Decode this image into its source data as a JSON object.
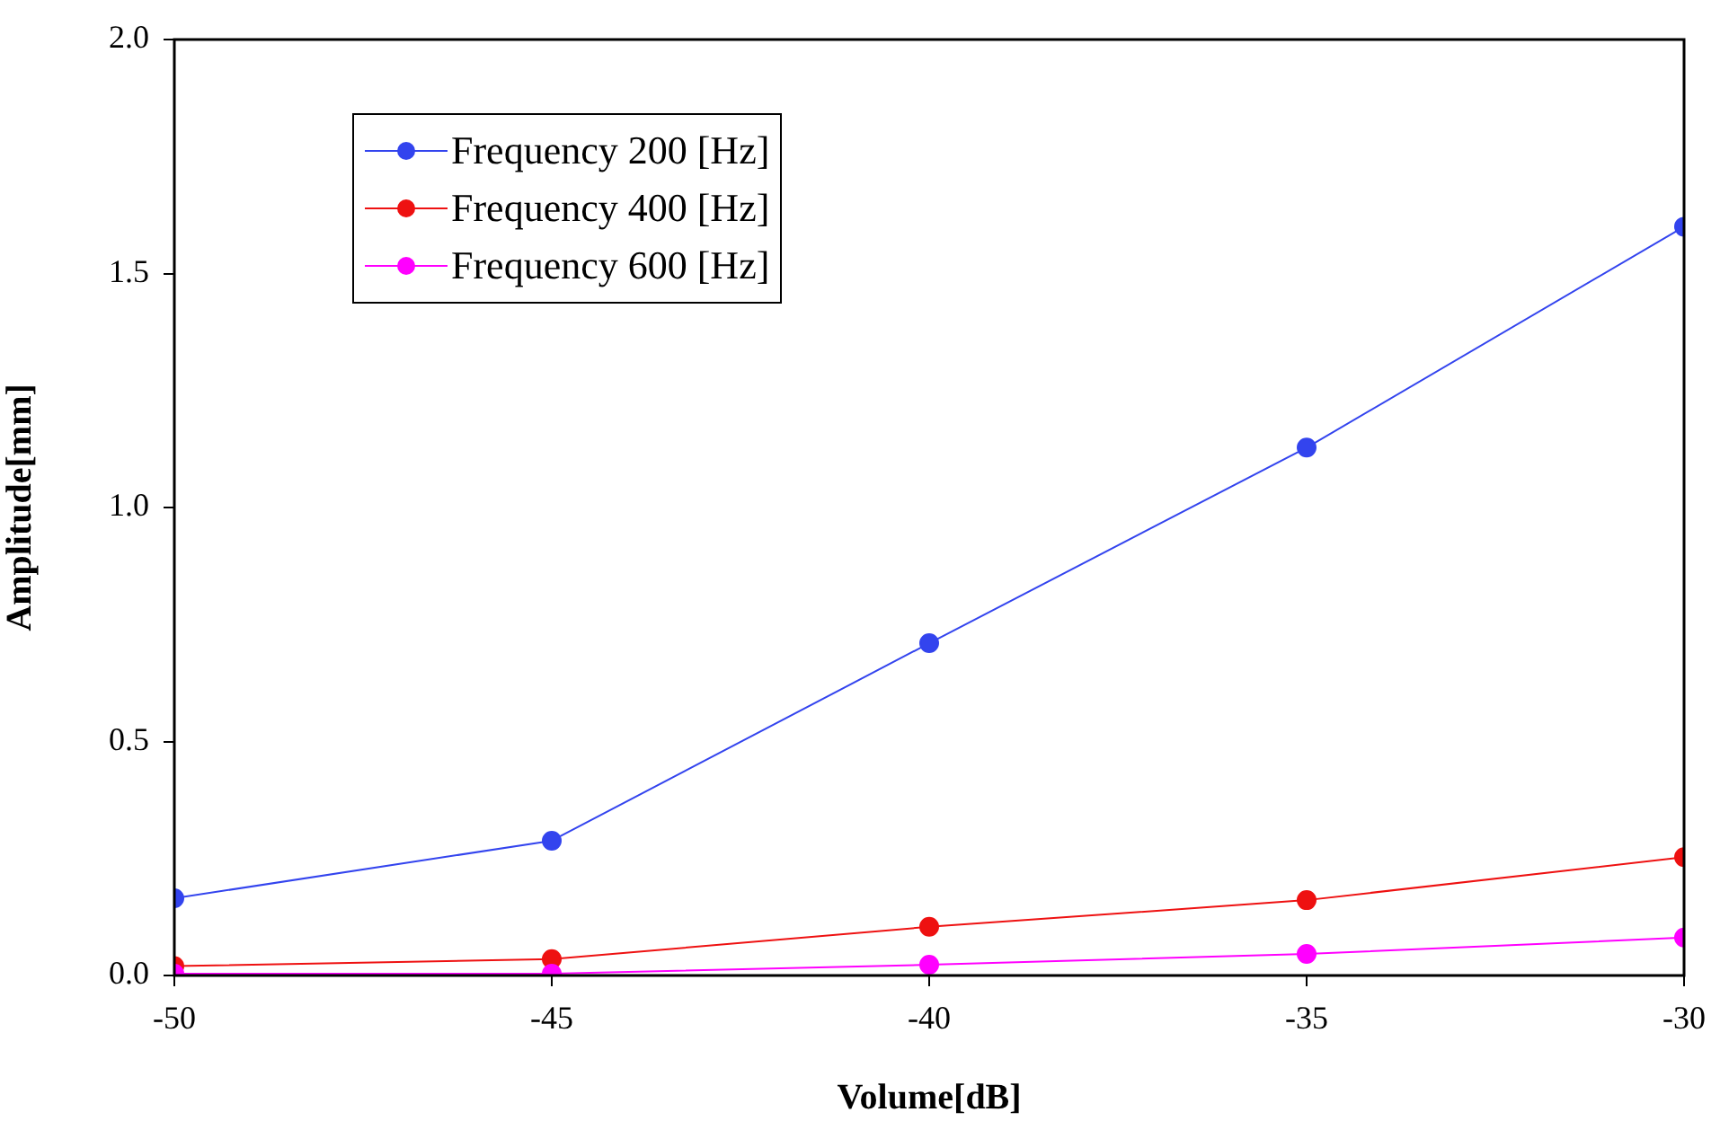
{
  "chart_data": {
    "type": "line",
    "xlabel": "Volume[dB]",
    "ylabel": "Amplitude[mm]",
    "x": [
      -50,
      -45,
      -40,
      -35,
      -30
    ],
    "series": [
      {
        "name": "Frequency 200 [Hz]",
        "color": "#3344ee",
        "values": [
          0.165,
          0.288,
          0.71,
          1.128,
          1.6
        ]
      },
      {
        "name": "Frequency 400 [Hz]",
        "color": "#ee1111",
        "values": [
          0.02,
          0.035,
          0.104,
          0.161,
          0.253
        ]
      },
      {
        "name": "Frequency 600 [Hz]",
        "color": "#ff00ff",
        "values": [
          0.004,
          0.004,
          0.023,
          0.046,
          0.081
        ]
      }
    ],
    "xlim": [
      -50,
      -30
    ],
    "xticks": [
      -50,
      -45,
      -40,
      -35,
      -30
    ],
    "ylim": [
      0,
      2
    ],
    "yticks": [
      {
        "value": 0,
        "label": "0.0"
      },
      {
        "value": 0.5,
        "label": "0.5"
      },
      {
        "value": 1,
        "label": "1.0"
      },
      {
        "value": 1.5,
        "label": "1.5"
      },
      {
        "value": 2,
        "label": "2.0"
      }
    ],
    "grid": false,
    "legend": "top left",
    "marker": "circle",
    "line_style": "solid"
  }
}
